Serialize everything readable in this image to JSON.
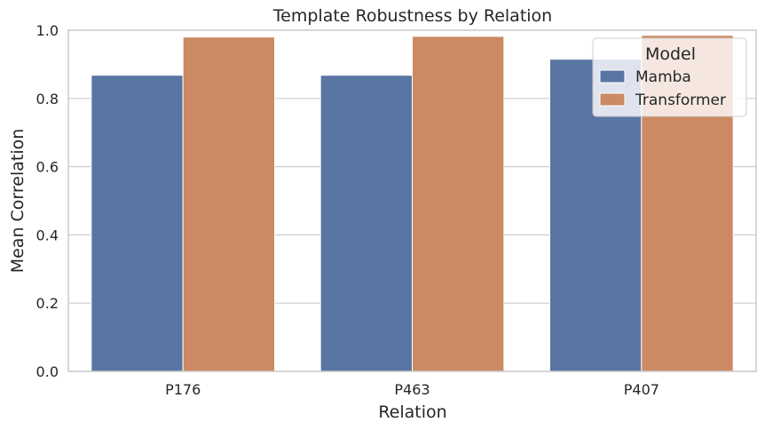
{
  "chart_data": {
    "type": "bar",
    "title": "Template Robustness by Relation",
    "xlabel": "Relation",
    "ylabel": "Mean Correlation",
    "categories": [
      "P176",
      "P463",
      "P407"
    ],
    "series": [
      {
        "name": "Mamba",
        "color": "#5975a4",
        "values": [
          0.868,
          0.868,
          0.915
        ]
      },
      {
        "name": "Transformer",
        "color": "#cc8963",
        "values": [
          0.98,
          0.982,
          0.985
        ]
      }
    ],
    "ylim": [
      0,
      1.0
    ],
    "yticks": [
      "0.0",
      "0.2",
      "0.4",
      "0.6",
      "0.8",
      "1.0"
    ],
    "grid": true,
    "legend": {
      "title": "Model",
      "placement": "top-right"
    }
  }
}
